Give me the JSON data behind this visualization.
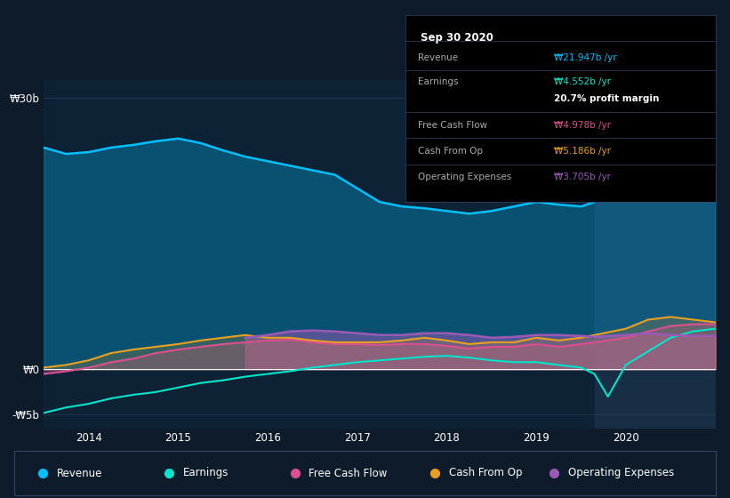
{
  "bg_color": "#0d1b2a",
  "plot_bg_color": "#0e2235",
  "title": "Sep 30 2020",
  "y_ticks": [
    -5,
    0,
    30
  ],
  "y_tick_labels": [
    "-₩5b",
    "₩0",
    "₩30b"
  ],
  "x_tick_labels": [
    "2014",
    "2015",
    "2016",
    "2017",
    "2018",
    "2019",
    "2020"
  ],
  "legend_labels": [
    "Revenue",
    "Earnings",
    "Free Cash Flow",
    "Cash From Op",
    "Operating Expenses"
  ],
  "legend_colors": [
    "#00bfff",
    "#00e5cc",
    "#d94f90",
    "#e8a020",
    "#9b59b6"
  ],
  "info_rows": [
    {
      "label": "Revenue",
      "value": "₩21.947b /yr",
      "color": "#00bfff"
    },
    {
      "label": "Earnings",
      "value": "₩4.552b /yr",
      "color": "#00e5cc"
    },
    {
      "label": "",
      "value": "20.7% profit margin",
      "color": "#ffffff"
    },
    {
      "label": "Free Cash Flow",
      "value": "₩4.978b /yr",
      "color": "#d94f90"
    },
    {
      "label": "Cash From Op",
      "value": "₩5.186b /yr",
      "color": "#e8a020"
    },
    {
      "label": "Operating Expenses",
      "value": "₩3.705b /yr",
      "color": "#9b59b6"
    }
  ],
  "x_range": [
    2013.5,
    2021.0
  ],
  "y_range": [
    -6.5,
    32.0
  ],
  "highlight_x_start": 2019.65,
  "revenue_points": [
    [
      2013.5,
      24.5
    ],
    [
      2013.75,
      23.8
    ],
    [
      2014.0,
      24.0
    ],
    [
      2014.25,
      24.5
    ],
    [
      2014.5,
      24.8
    ],
    [
      2014.75,
      25.2
    ],
    [
      2015.0,
      25.5
    ],
    [
      2015.25,
      25.0
    ],
    [
      2015.5,
      24.2
    ],
    [
      2015.75,
      23.5
    ],
    [
      2016.0,
      23.0
    ],
    [
      2016.25,
      22.5
    ],
    [
      2016.5,
      22.0
    ],
    [
      2016.75,
      21.5
    ],
    [
      2017.0,
      20.0
    ],
    [
      2017.25,
      18.5
    ],
    [
      2017.5,
      18.0
    ],
    [
      2017.75,
      17.8
    ],
    [
      2018.0,
      17.5
    ],
    [
      2018.25,
      17.2
    ],
    [
      2018.5,
      17.5
    ],
    [
      2018.75,
      18.0
    ],
    [
      2019.0,
      18.5
    ],
    [
      2019.25,
      18.2
    ],
    [
      2019.5,
      18.0
    ],
    [
      2019.65,
      18.5
    ],
    [
      2020.0,
      26.0
    ],
    [
      2020.25,
      27.2
    ],
    [
      2020.5,
      26.0
    ],
    [
      2020.75,
      23.5
    ],
    [
      2021.0,
      21.9
    ]
  ],
  "earnings_points": [
    [
      2013.5,
      -4.8
    ],
    [
      2013.75,
      -4.2
    ],
    [
      2014.0,
      -3.8
    ],
    [
      2014.25,
      -3.2
    ],
    [
      2014.5,
      -2.8
    ],
    [
      2014.75,
      -2.5
    ],
    [
      2015.0,
      -2.0
    ],
    [
      2015.25,
      -1.5
    ],
    [
      2015.5,
      -1.2
    ],
    [
      2015.75,
      -0.8
    ],
    [
      2016.0,
      -0.5
    ],
    [
      2016.25,
      -0.2
    ],
    [
      2016.5,
      0.2
    ],
    [
      2016.75,
      0.5
    ],
    [
      2017.0,
      0.8
    ],
    [
      2017.25,
      1.0
    ],
    [
      2017.5,
      1.2
    ],
    [
      2017.75,
      1.4
    ],
    [
      2018.0,
      1.5
    ],
    [
      2018.25,
      1.3
    ],
    [
      2018.5,
      1.0
    ],
    [
      2018.75,
      0.8
    ],
    [
      2019.0,
      0.8
    ],
    [
      2019.25,
      0.5
    ],
    [
      2019.5,
      0.2
    ],
    [
      2019.65,
      -0.5
    ],
    [
      2019.8,
      -3.0
    ],
    [
      2020.0,
      0.5
    ],
    [
      2020.25,
      2.0
    ],
    [
      2020.5,
      3.5
    ],
    [
      2020.75,
      4.2
    ],
    [
      2021.0,
      4.5
    ]
  ],
  "fcf_points": [
    [
      2013.5,
      -0.5
    ],
    [
      2013.75,
      -0.2
    ],
    [
      2014.0,
      0.2
    ],
    [
      2014.25,
      0.8
    ],
    [
      2014.5,
      1.2
    ],
    [
      2014.75,
      1.8
    ],
    [
      2015.0,
      2.2
    ],
    [
      2015.25,
      2.5
    ],
    [
      2015.5,
      2.8
    ],
    [
      2015.75,
      3.0
    ],
    [
      2016.0,
      3.2
    ],
    [
      2016.25,
      3.3
    ],
    [
      2016.5,
      3.0
    ],
    [
      2016.75,
      2.8
    ],
    [
      2017.0,
      2.8
    ],
    [
      2017.25,
      2.7
    ],
    [
      2017.5,
      2.8
    ],
    [
      2017.75,
      2.8
    ],
    [
      2018.0,
      2.6
    ],
    [
      2018.25,
      2.3
    ],
    [
      2018.5,
      2.5
    ],
    [
      2018.75,
      2.5
    ],
    [
      2019.0,
      2.8
    ],
    [
      2019.25,
      2.5
    ],
    [
      2019.5,
      2.8
    ],
    [
      2019.65,
      3.0
    ],
    [
      2020.0,
      3.5
    ],
    [
      2020.25,
      4.2
    ],
    [
      2020.5,
      4.8
    ],
    [
      2020.75,
      5.0
    ],
    [
      2021.0,
      5.0
    ]
  ],
  "cashop_points": [
    [
      2013.5,
      0.2
    ],
    [
      2013.75,
      0.5
    ],
    [
      2014.0,
      1.0
    ],
    [
      2014.25,
      1.8
    ],
    [
      2014.5,
      2.2
    ],
    [
      2014.75,
      2.5
    ],
    [
      2015.0,
      2.8
    ],
    [
      2015.25,
      3.2
    ],
    [
      2015.5,
      3.5
    ],
    [
      2015.75,
      3.8
    ],
    [
      2016.0,
      3.5
    ],
    [
      2016.25,
      3.5
    ],
    [
      2016.5,
      3.2
    ],
    [
      2016.75,
      3.0
    ],
    [
      2017.0,
      3.0
    ],
    [
      2017.25,
      3.0
    ],
    [
      2017.5,
      3.2
    ],
    [
      2017.75,
      3.5
    ],
    [
      2018.0,
      3.2
    ],
    [
      2018.25,
      2.8
    ],
    [
      2018.5,
      3.0
    ],
    [
      2018.75,
      3.0
    ],
    [
      2019.0,
      3.5
    ],
    [
      2019.25,
      3.2
    ],
    [
      2019.5,
      3.5
    ],
    [
      2019.65,
      3.8
    ],
    [
      2020.0,
      4.5
    ],
    [
      2020.25,
      5.5
    ],
    [
      2020.5,
      5.8
    ],
    [
      2020.75,
      5.5
    ],
    [
      2021.0,
      5.2
    ]
  ],
  "opex_points": [
    [
      2015.75,
      3.5
    ],
    [
      2016.0,
      3.8
    ],
    [
      2016.25,
      4.2
    ],
    [
      2016.5,
      4.3
    ],
    [
      2016.75,
      4.2
    ],
    [
      2017.0,
      4.0
    ],
    [
      2017.25,
      3.8
    ],
    [
      2017.5,
      3.8
    ],
    [
      2017.75,
      4.0
    ],
    [
      2018.0,
      4.0
    ],
    [
      2018.25,
      3.8
    ],
    [
      2018.5,
      3.5
    ],
    [
      2018.75,
      3.6
    ],
    [
      2019.0,
      3.8
    ],
    [
      2019.25,
      3.8
    ],
    [
      2019.5,
      3.7
    ],
    [
      2019.65,
      3.6
    ],
    [
      2020.0,
      3.8
    ],
    [
      2020.25,
      4.0
    ],
    [
      2020.5,
      3.8
    ],
    [
      2020.75,
      3.7
    ],
    [
      2021.0,
      3.7
    ]
  ]
}
